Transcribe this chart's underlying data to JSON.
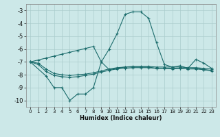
{
  "xlabel": "Humidex (Indice chaleur)",
  "bg_color": "#cce8e8",
  "grid_color": "#aacccc",
  "line_color": "#1a6b6b",
  "xlim": [
    -0.5,
    23.5
  ],
  "ylim": [
    -10.5,
    -2.5
  ],
  "xticks": [
    0,
    1,
    2,
    3,
    4,
    5,
    6,
    7,
    8,
    9,
    10,
    11,
    12,
    13,
    14,
    15,
    16,
    17,
    18,
    19,
    20,
    21,
    22,
    23
  ],
  "yticks": [
    -10,
    -9,
    -8,
    -7,
    -6,
    -5,
    -4,
    -3
  ],
  "series1_x": [
    0,
    1,
    2,
    3,
    4,
    5,
    6,
    7,
    8,
    9,
    10,
    11,
    12,
    13,
    14,
    15,
    16,
    17,
    18,
    19,
    20,
    21,
    22,
    23
  ],
  "series1_y": [
    -7.0,
    -6.85,
    -6.7,
    -6.55,
    -6.4,
    -6.25,
    -6.1,
    -5.95,
    -5.8,
    -7.0,
    -6.0,
    -4.8,
    -3.3,
    -3.1,
    -3.1,
    -3.6,
    -5.5,
    -7.2,
    -7.4,
    -7.3,
    -7.5,
    -6.8,
    -7.1,
    -7.5
  ],
  "series2_x": [
    0,
    1,
    2,
    3,
    4,
    5,
    6,
    7,
    8,
    9,
    10,
    11,
    12,
    13,
    14,
    15,
    16,
    17,
    18,
    19,
    20,
    21,
    22,
    23
  ],
  "series2_y": [
    -7.0,
    -7.1,
    -7.55,
    -7.9,
    -8.0,
    -8.05,
    -8.0,
    -7.95,
    -7.85,
    -7.7,
    -7.55,
    -7.45,
    -7.4,
    -7.35,
    -7.35,
    -7.35,
    -7.4,
    -7.4,
    -7.4,
    -7.4,
    -7.45,
    -7.45,
    -7.5,
    -7.55
  ],
  "series3_x": [
    0,
    1,
    2,
    3,
    4,
    5,
    6,
    7,
    8,
    9,
    10,
    11,
    12,
    13,
    14,
    15,
    16,
    17,
    18,
    19,
    20,
    21,
    22,
    23
  ],
  "series3_y": [
    -7.0,
    -7.2,
    -7.75,
    -8.05,
    -8.15,
    -8.2,
    -8.15,
    -8.05,
    -7.95,
    -7.8,
    -7.65,
    -7.55,
    -7.5,
    -7.45,
    -7.45,
    -7.45,
    -7.5,
    -7.5,
    -7.5,
    -7.5,
    -7.55,
    -7.55,
    -7.6,
    -7.65
  ],
  "series4_x": [
    0,
    2,
    3,
    4,
    5,
    6,
    7,
    8,
    9,
    10,
    11,
    12,
    13,
    14,
    15,
    16,
    17,
    18,
    19,
    20,
    21,
    22,
    23
  ],
  "series4_y": [
    -7.0,
    -8.1,
    -9.0,
    -9.0,
    -10.0,
    -9.5,
    -9.5,
    -9.0,
    -7.0,
    -7.6,
    -7.5,
    -7.4,
    -7.4,
    -7.4,
    -7.4,
    -7.5,
    -7.5,
    -7.55,
    -7.5,
    -7.55,
    -7.5,
    -7.6,
    -7.7
  ]
}
